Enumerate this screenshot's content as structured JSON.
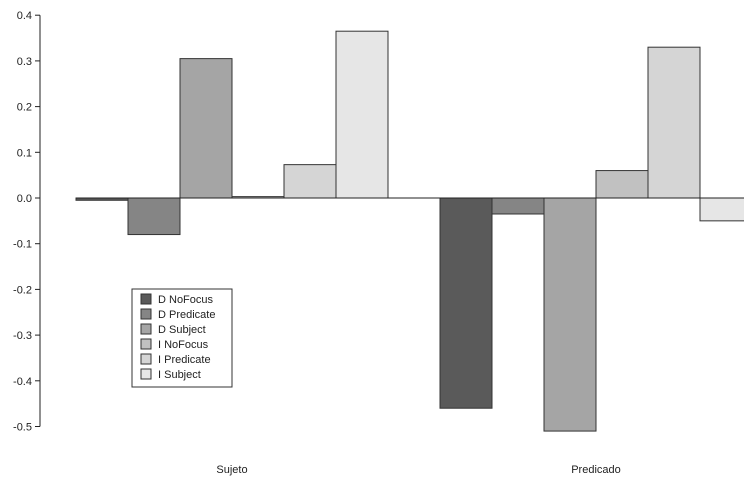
{
  "chart_data": {
    "type": "bar",
    "categories": [
      "Sujeto",
      "Predicado"
    ],
    "series": [
      {
        "name": "D NoFocus",
        "color": "#5a5a5a",
        "values": [
          -0.005,
          -0.46
        ]
      },
      {
        "name": "D Predicate",
        "color": "#858585",
        "values": [
          -0.08,
          -0.035
        ]
      },
      {
        "name": "D Subject",
        "color": "#a5a5a5",
        "values": [
          0.305,
          -0.51
        ]
      },
      {
        "name": "I NoFocus",
        "color": "#c1c1c1",
        "values": [
          0.003,
          0.06
        ]
      },
      {
        "name": "I Predicate",
        "color": "#d5d5d5",
        "values": [
          0.073,
          0.33
        ]
      },
      {
        "name": "I Subject",
        "color": "#e6e6e6",
        "values": [
          0.365,
          -0.05
        ]
      }
    ],
    "y_ticks": [
      "0.4",
      "0.3",
      "0.2",
      "0.1",
      "0.0",
      "-0.1",
      "-0.2",
      "-0.3",
      "-0.4",
      "-0.5"
    ],
    "ylim": [
      -0.52,
      0.4
    ],
    "title": "",
    "xlabel": "",
    "ylabel": "",
    "grid": false,
    "legend_position": "lower-left"
  }
}
